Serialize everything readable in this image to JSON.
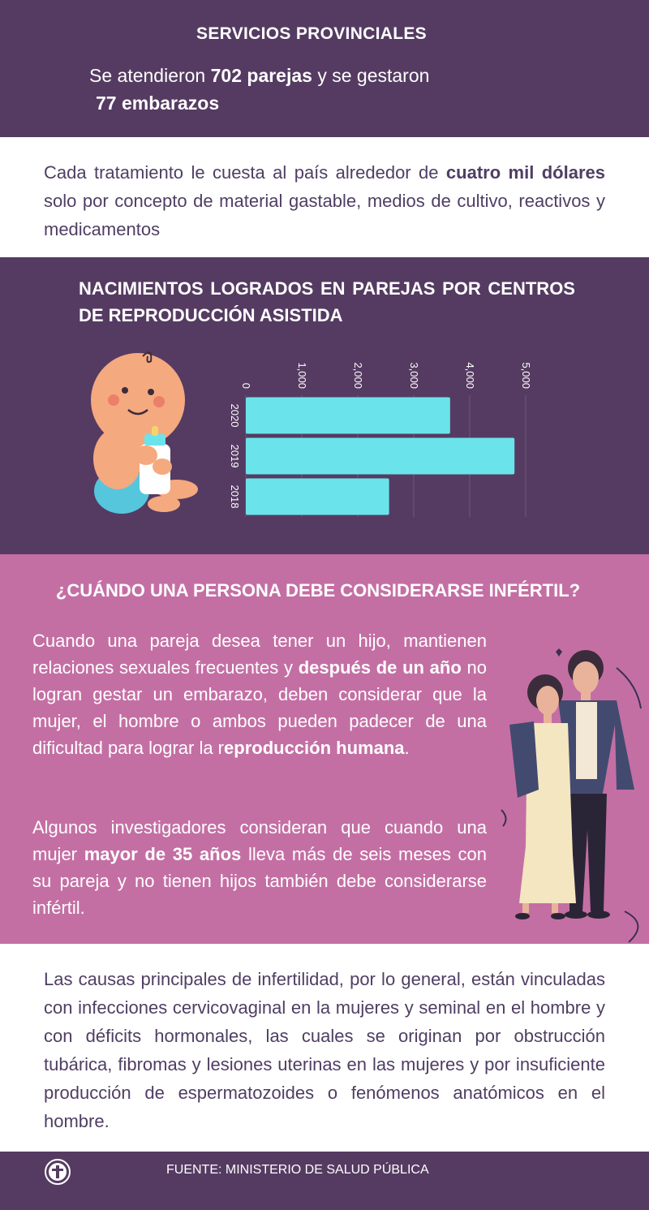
{
  "section1": {
    "title": "SERVICIOS PROVINCIALES",
    "line1_pre": "Se atendieron ",
    "line1_bold": "702 parejas",
    "line1_post": " y se gestaron",
    "line2_bold": "77 embarazos"
  },
  "section2": {
    "pre": "Cada tratamiento le cuesta al país alrededor de ",
    "bold": "cuatro mil dólares",
    "post": " solo por concepto de material gastable, medios de cultivo, reactivos y medicamentos"
  },
  "section3": {
    "title": "NACIMIENTOS LOGRADOS EN PAREJAS POR CENTROS DE REPRODUCCIÓN ASISTIDA"
  },
  "chart_data": {
    "type": "bar",
    "orientation": "horizontal",
    "categories": [
      "2020",
      "2019",
      "2018"
    ],
    "values": [
      3650,
      4800,
      2560
    ],
    "tick_labels": [
      "0",
      "1,000",
      "2,000",
      "3,000",
      "4,000",
      "5,000"
    ],
    "ticks": [
      0,
      1000,
      2000,
      3000,
      4000,
      5000
    ],
    "xlim": [
      0,
      5000
    ],
    "bar_color": "#6ae4ea",
    "grid": true
  },
  "section4": {
    "title": "¿CUÁNDO UNA PERSONA DEBE CONSIDERARSE INFÉRTIL?",
    "p1_a": "Cuando una pareja desea tener un hijo, mantienen relaciones sexuales frecuentes y ",
    "p1_b": "después de un año",
    "p1_c": " no logran gestar un embarazo, deben considerar que la mujer, el hombre o ambos pueden padecer de una dificultad para lograr la r",
    "p1_d": "eproducción humana",
    "p1_e": ".",
    "p2_a": "Algunos investigadores consideran que cuando una mujer ",
    "p2_b": "mayor de 35 años",
    "p2_c": " lleva más de seis meses con su pareja y no tienen hijos también debe considerarse infértil."
  },
  "section5": {
    "text": "Las causas principales de infertilidad, por lo general, están vinculadas con infecciones cervicovaginal en la mujeres y seminal en el hombre y con déficits hormonales, las cuales se originan por obstrucción tubárica, fibromas y lesiones uterinas en las mujeres y por insuficiente producción de espermatozoides o fenómenos anatómicos en el hombre."
  },
  "footer": {
    "source": "FUENTE: MINISTERIO DE SALUD PÚBLICA"
  },
  "colors": {
    "purple": "#553b62",
    "pink": "#c46fa4",
    "text_dark": "#4f3e63",
    "bar": "#6ae4ea"
  }
}
